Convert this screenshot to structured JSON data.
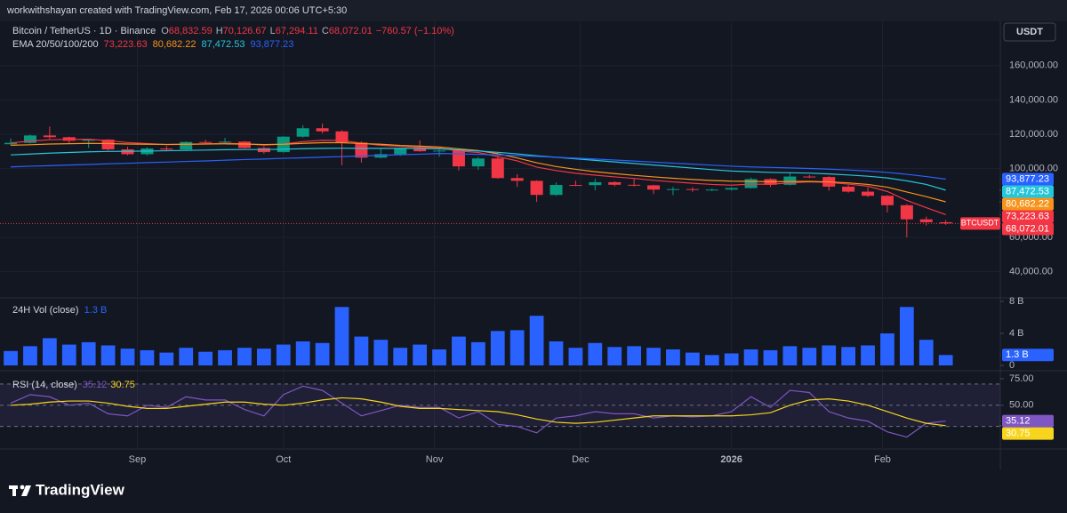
{
  "header": {
    "attribution": "workwithshayan created with TradingView.com, Feb 17, 2026 00:06 UTC+5:30"
  },
  "footer": {
    "brand": "TradingView"
  },
  "chart_data": [
    {
      "type": "candlestick",
      "title": "Bitcoin / TetherUS · 1D · Binance",
      "legend_ohlc": [
        [
          "O",
          "68,832.59"
        ],
        [
          "H",
          "70,126.67"
        ],
        [
          "L",
          "67,294.11"
        ],
        [
          "C",
          "68,072.01"
        ]
      ],
      "change": "−760.57 (−1.10%)",
      "indicator": "EMA 20/50/100/200",
      "currency": "USDT",
      "up_color": "#089981",
      "down_color": "#f23645",
      "grid": true,
      "xlim": [
        -0.55,
        50.8
      ],
      "xticks": [
        {
          "value": 6.5,
          "label": "Sep"
        },
        {
          "value": 14,
          "label": "Oct"
        },
        {
          "value": 21.75,
          "label": "Nov"
        },
        {
          "value": 29.25,
          "label": "Dec"
        },
        {
          "value": 37,
          "label": "2026"
        },
        {
          "value": 44.75,
          "label": "Feb"
        }
      ],
      "ylim": [
        24800,
        185200
      ],
      "yticks": [
        {
          "value": 40000,
          "label": "40,000.00"
        },
        {
          "value": 60000,
          "label": "60,000.00"
        },
        {
          "value": 100000,
          "label": "100,000.00"
        },
        {
          "value": 120000,
          "label": "120,000.00"
        },
        {
          "value": 140000,
          "label": "140,000.00"
        },
        {
          "value": 160000,
          "label": "160,000.00"
        }
      ],
      "open": [
        114200,
        115000,
        119300,
        118300,
        116200,
        116900,
        111200,
        108400,
        111700,
        111100,
        115500,
        115300,
        115700,
        112000,
        109600,
        118600,
        123500,
        121700,
        115200,
        106400,
        108400,
        111600,
        110100,
        110500,
        101300,
        105900,
        94500,
        92900,
        84700,
        90500,
        90400,
        92100,
        90600,
        90300,
        87800,
        88100,
        87600,
        87800,
        88700,
        93900,
        90600,
        95400,
        95100,
        89500,
        86600,
        84200,
        78700,
        70500,
        68800
      ],
      "high": [
        117600,
        119800,
        124500,
        118600,
        117400,
        117200,
        112700,
        112500,
        113200,
        115900,
        116800,
        117900,
        116000,
        113000,
        118900,
        125300,
        126200,
        122300,
        115900,
        111800,
        112000,
        116400,
        111200,
        110800,
        106700,
        107500,
        96800,
        93200,
        91900,
        93000,
        94100,
        92700,
        94500,
        90600,
        89400,
        89100,
        88500,
        89200,
        94800,
        94400,
        97900,
        96300,
        95600,
        90500,
        89100,
        84600,
        79300,
        72100,
        70100
      ],
      "low": [
        113800,
        114600,
        117200,
        114800,
        112000,
        110500,
        107800,
        107600,
        110100,
        110600,
        114400,
        114900,
        111700,
        108700,
        109300,
        118100,
        120500,
        102000,
        103600,
        106000,
        107400,
        109800,
        106900,
        98900,
        99300,
        94100,
        89300,
        80600,
        84200,
        89800,
        87400,
        89700,
        89600,
        85200,
        84500,
        86500,
        86900,
        87200,
        88400,
        89300,
        90200,
        94500,
        87200,
        86000,
        83400,
        74500,
        60000,
        66900,
        67300
      ],
      "close": [
        115000,
        119300,
        118300,
        116200,
        116900,
        111200,
        108400,
        111700,
        111100,
        115500,
        115300,
        115700,
        112000,
        109600,
        118600,
        123500,
        121700,
        115200,
        106400,
        108400,
        111600,
        110100,
        110500,
        101300,
        105900,
        94500,
        92900,
        84700,
        90500,
        90400,
        92100,
        90600,
        90300,
        87800,
        88100,
        87600,
        87800,
        88700,
        93900,
        90600,
        95400,
        95100,
        89500,
        86600,
        84200,
        78700,
        70500,
        68800,
        68100
      ],
      "series": [
        {
          "color": "#f23645",
          "last": {
            "value": 73223.63,
            "label": "73,223.63"
          },
          "values": [
            115000,
            116000,
            116800,
            117000,
            117100,
            116300,
            115200,
            114600,
            114000,
            114200,
            114400,
            114700,
            114400,
            113700,
            114300,
            115700,
            116500,
            116400,
            114800,
            113600,
            113000,
            112400,
            112000,
            110300,
            109400,
            107000,
            104500,
            100900,
            98900,
            97300,
            96200,
            95200,
            94300,
            93200,
            92300,
            91500,
            90800,
            90400,
            91000,
            90900,
            91700,
            92300,
            91900,
            91000,
            89800,
            86700,
            81500,
            77300,
            73223.63
          ]
        },
        {
          "color": "#f7931a",
          "last": {
            "value": 80682.22,
            "label": "80,682.22"
          },
          "values": [
            113600,
            113900,
            114300,
            114500,
            114700,
            114600,
            114300,
            114200,
            114100,
            114200,
            114300,
            114400,
            114300,
            114000,
            114200,
            114700,
            115100,
            115100,
            114600,
            114200,
            113500,
            113100,
            112600,
            111500,
            110500,
            108700,
            106200,
            103400,
            101200,
            99600,
            98200,
            97100,
            96100,
            95200,
            94400,
            93700,
            93100,
            92700,
            92600,
            92400,
            92500,
            92600,
            92300,
            91700,
            90800,
            89200,
            86400,
            83700,
            80682.22
          ]
        },
        {
          "color": "#26c6da",
          "last": {
            "value": 87472.53,
            "label": "87,472.53"
          },
          "values": [
            108000,
            108500,
            109000,
            109400,
            109800,
            110000,
            110100,
            110200,
            110400,
            110600,
            110800,
            111000,
            111100,
            111100,
            111300,
            111600,
            111800,
            111900,
            111800,
            111800,
            111800,
            111800,
            111500,
            110900,
            110300,
            109500,
            108600,
            107500,
            106600,
            105700,
            104800,
            103900,
            103000,
            102100,
            101200,
            100300,
            99400,
            98600,
            98200,
            97800,
            97600,
            97400,
            96900,
            96300,
            95600,
            94600,
            92900,
            90800,
            87472.53
          ]
        },
        {
          "color": "#2962ff",
          "last": {
            "value": 93877.23,
            "label": "93,877.23"
          },
          "values": [
            101000,
            101400,
            101700,
            102100,
            102400,
            102800,
            103100,
            103500,
            103800,
            104200,
            104500,
            104900,
            105300,
            105600,
            106000,
            106300,
            106700,
            107000,
            107400,
            107700,
            108100,
            108400,
            108800,
            108600,
            108300,
            108000,
            107600,
            107100,
            106600,
            106100,
            105600,
            105000,
            104400,
            103800,
            103200,
            102600,
            102000,
            101400,
            101000,
            100700,
            100400,
            100100,
            99700,
            99200,
            98600,
            97800,
            96700,
            95400,
            93877.23
          ]
        }
      ],
      "last_price": {
        "value": 68072.01,
        "label": "68,072.01",
        "symbol": "BTCUSDT"
      }
    },
    {
      "type": "bar",
      "title": "24H Vol (close)",
      "color": "#2962ff",
      "last": {
        "value": 1.3,
        "label": "1.3 B"
      },
      "ylim": [
        0,
        8.44
      ],
      "yticks": [
        0,
        {
          "value": 4,
          "label": "4 B"
        },
        {
          "value": 8,
          "label": "8 B"
        }
      ],
      "values": [
        1.8,
        2.4,
        3.4,
        2.6,
        2.9,
        2.5,
        2.1,
        1.9,
        1.6,
        2.2,
        1.7,
        1.9,
        2.2,
        2.1,
        2.6,
        3.0,
        2.8,
        7.3,
        3.6,
        3.2,
        2.2,
        2.6,
        2.0,
        3.6,
        2.9,
        4.3,
        4.4,
        6.2,
        3.0,
        2.2,
        2.8,
        2.3,
        2.4,
        2.2,
        2.0,
        1.6,
        1.3,
        1.5,
        2.0,
        1.9,
        2.4,
        2.2,
        2.5,
        2.3,
        2.5,
        4.0,
        7.3,
        3.2,
        1.3
      ]
    },
    {
      "type": "line",
      "title": "RSI (14, close)",
      "ylim": [
        13,
        80
      ],
      "yticks": [
        {
          "value": 75,
          "label": "75.00"
        },
        {
          "value": 50,
          "label": "50.00"
        }
      ],
      "levels": [
        70,
        50,
        30
      ],
      "series": [
        {
          "color": "#7e57c2",
          "last": {
            "value": 35.12,
            "label": "35.12"
          },
          "values": [
            52,
            60,
            58,
            50,
            52,
            42,
            40,
            50,
            48,
            58,
            55,
            55,
            46,
            40,
            60,
            68,
            64,
            52,
            40,
            45,
            50,
            48,
            48,
            38,
            44,
            32,
            30,
            24,
            38,
            40,
            44,
            42,
            42,
            38,
            40,
            39,
            40,
            44,
            58,
            48,
            64,
            62,
            44,
            38,
            35,
            25,
            20,
            33,
            35.12
          ]
        },
        {
          "color": "#f7d51d",
          "last": {
            "value": 30.75,
            "label": "30.75"
          },
          "values": [
            50,
            51,
            53,
            54,
            54,
            52,
            49,
            47,
            47,
            49,
            51,
            53,
            53,
            51,
            50,
            52,
            55,
            57,
            56,
            53,
            49,
            47,
            47,
            46,
            45,
            44,
            41,
            37,
            34,
            33,
            34,
            36,
            38,
            40,
            40,
            40,
            40,
            40,
            41,
            43,
            50,
            55,
            56,
            54,
            50,
            44,
            38,
            33,
            30.75
          ]
        }
      ]
    }
  ]
}
